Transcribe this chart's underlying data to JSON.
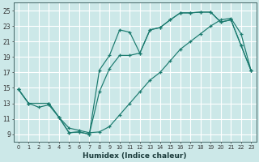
{
  "xlabel": "Humidex (Indice chaleur)",
  "bg_color": "#cce8e8",
  "grid_color": "#ffffff",
  "line_color": "#1a7a6e",
  "xlim": [
    -0.5,
    23.5
  ],
  "ylim": [
    8.0,
    26.0
  ],
  "xticks": [
    0,
    1,
    2,
    3,
    4,
    5,
    6,
    7,
    8,
    9,
    10,
    11,
    12,
    13,
    14,
    15,
    16,
    17,
    18,
    19,
    20,
    21,
    22,
    23
  ],
  "yticks": [
    9,
    11,
    13,
    15,
    17,
    19,
    21,
    23,
    25
  ],
  "curve_top_x": [
    0,
    1,
    3,
    4,
    5,
    6,
    7,
    8,
    9,
    10,
    11,
    12,
    13,
    14,
    15,
    16,
    17,
    18,
    19,
    20,
    21,
    22,
    23
  ],
  "curve_top_y": [
    14.8,
    13.0,
    13.0,
    11.2,
    9.2,
    9.3,
    9.0,
    17.3,
    19.2,
    22.5,
    22.2,
    19.5,
    22.5,
    22.8,
    23.8,
    24.7,
    24.7,
    24.8,
    24.8,
    23.5,
    23.8,
    20.5,
    17.2
  ],
  "curve_mid_x": [
    0,
    1,
    3,
    4,
    5,
    6,
    7,
    8,
    9,
    10,
    11,
    12,
    13,
    14,
    15,
    16,
    17,
    18,
    19,
    20,
    21,
    22,
    23
  ],
  "curve_mid_y": [
    14.8,
    13.0,
    13.0,
    11.2,
    9.2,
    9.3,
    9.0,
    14.5,
    17.5,
    19.2,
    19.2,
    19.5,
    22.5,
    22.8,
    23.8,
    24.7,
    24.7,
    24.8,
    24.8,
    23.5,
    23.8,
    20.5,
    17.2
  ],
  "curve_bot_x": [
    0,
    1,
    2,
    3,
    4,
    5,
    6,
    7,
    8,
    9,
    10,
    11,
    12,
    13,
    14,
    15,
    16,
    17,
    18,
    19,
    20,
    21,
    22,
    23
  ],
  "curve_bot_y": [
    14.8,
    13.0,
    12.5,
    12.8,
    11.2,
    9.8,
    9.5,
    9.2,
    9.3,
    10.0,
    11.5,
    13.0,
    14.5,
    16.0,
    17.0,
    18.5,
    20.0,
    21.0,
    22.0,
    23.0,
    23.8,
    24.0,
    22.0,
    17.2
  ]
}
